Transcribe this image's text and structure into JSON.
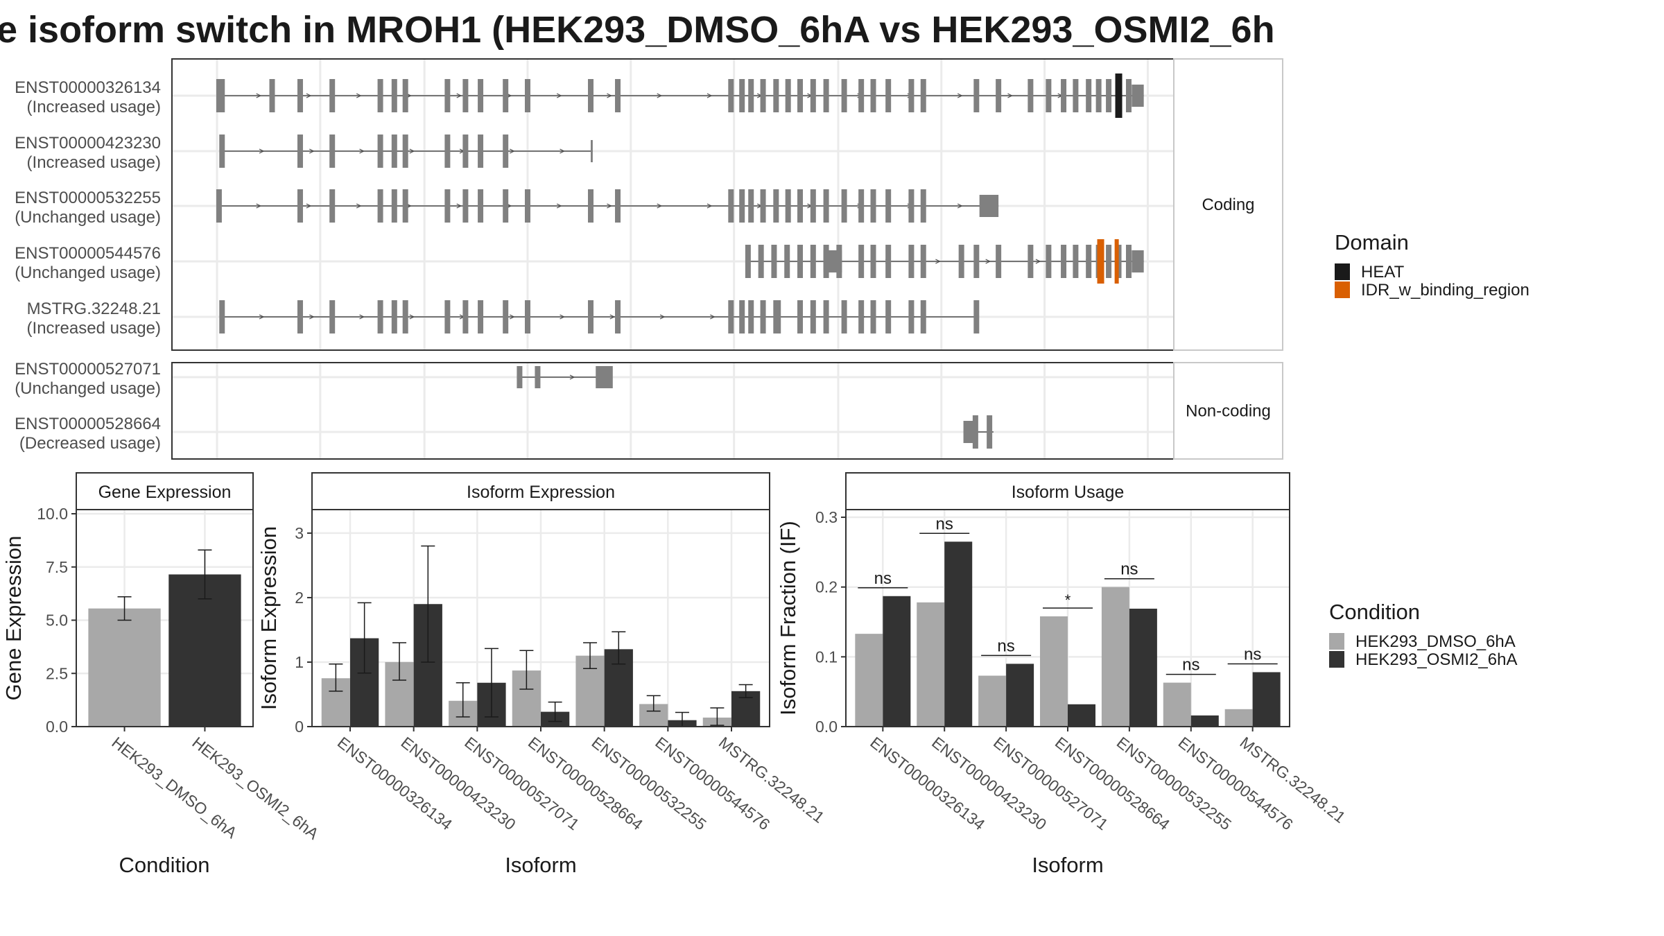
{
  "title": "e isoform switch in MROH1 (HEK293_DMSO_6hA vs HEK293_OSMI2_6h",
  "colors": {
    "dmso": "#a8a8a8",
    "osmi2": "#333333",
    "exon": "#808080",
    "heat": "#1a1a1a",
    "idr": "#d95f02",
    "grid": "#ebebeb",
    "strip": "#ffffff"
  },
  "structure": {
    "coding_label": "Coding",
    "noncoding_label": "Non-coding",
    "coding": [
      {
        "id": "ENST00000326134",
        "usage": "(Increased usage)"
      },
      {
        "id": "ENST00000423230",
        "usage": "(Increased usage)"
      },
      {
        "id": "ENST00000532255",
        "usage": "(Unchanged usage)"
      },
      {
        "id": "ENST00000544576",
        "usage": "(Unchanged usage)"
      },
      {
        "id": "MSTRG.32248.21",
        "usage": "(Increased usage)"
      }
    ],
    "noncoding": [
      {
        "id": "ENST00000527071",
        "usage": "(Unchanged usage)"
      },
      {
        "id": "ENST00000528664",
        "usage": "(Decreased usage)"
      }
    ]
  },
  "legend_domain": {
    "title": "Domain",
    "items": [
      {
        "label": "HEAT",
        "color": "#1a1a1a"
      },
      {
        "label": "IDR_w_binding_region",
        "color": "#d95f02"
      }
    ]
  },
  "legend_condition": {
    "title": "Condition",
    "items": [
      {
        "label": "HEK293_DMSO_6hA",
        "color": "#a8a8a8"
      },
      {
        "label": "HEK293_OSMI2_6hA",
        "color": "#333333"
      }
    ]
  },
  "chart_data": [
    {
      "type": "bar",
      "title": "Gene Expression",
      "xlabel": "Condition",
      "ylabel": "Gene Expression",
      "ylim": [
        0,
        10
      ],
      "yticks": [
        "0.0",
        "2.5",
        "5.0",
        "7.5",
        "10.0"
      ],
      "categories": [
        "HEK293_DMSO_6hA",
        "HEK293_OSMI2_6hA"
      ],
      "values": [
        5.55,
        7.15
      ],
      "error_low": [
        5.0,
        6.0
      ],
      "error_high": [
        6.1,
        8.3
      ]
    },
    {
      "type": "bar",
      "title": "Isoform Expression",
      "xlabel": "Isoform",
      "ylabel": "Isoform Expression",
      "ylim": [
        0,
        3.3
      ],
      "yticks": [
        "0",
        "1",
        "2",
        "3"
      ],
      "categories": [
        "ENST00000326134",
        "ENST00000423230",
        "ENST00000527071",
        "ENST00000528664",
        "ENST00000532255",
        "ENST00000544576",
        "MSTRG.32248.21"
      ],
      "series": [
        {
          "name": "HEK293_DMSO_6hA",
          "values": [
            0.75,
            1.0,
            0.4,
            0.87,
            1.1,
            0.35,
            0.14
          ],
          "error_low": [
            0.55,
            0.72,
            0.15,
            0.58,
            0.9,
            0.24,
            0.02
          ],
          "error_high": [
            0.97,
            1.3,
            0.68,
            1.18,
            1.3,
            0.48,
            0.29
          ]
        },
        {
          "name": "HEK293_OSMI2_6hA",
          "values": [
            1.37,
            1.9,
            0.68,
            0.23,
            1.2,
            0.1,
            0.55
          ],
          "error_low": [
            0.83,
            1.0,
            0.15,
            0.08,
            0.97,
            0.0,
            0.45
          ],
          "error_high": [
            1.92,
            2.8,
            1.21,
            0.38,
            1.47,
            0.22,
            0.65
          ]
        }
      ]
    },
    {
      "type": "bar",
      "title": "Isoform Usage",
      "xlabel": "Isoform",
      "ylabel": "Isoform Fraction (IF)",
      "ylim": [
        0,
        0.305
      ],
      "yticks": [
        "0.0",
        "0.1",
        "0.2",
        "0.3"
      ],
      "categories": [
        "ENST00000326134",
        "ENST00000423230",
        "ENST00000527071",
        "ENST00000528664",
        "ENST00000532255",
        "ENST00000544576",
        "MSTRG.32248.21"
      ],
      "series": [
        {
          "name": "HEK293_DMSO_6hA",
          "values": [
            0.133,
            0.178,
            0.073,
            0.158,
            0.2,
            0.063,
            0.025
          ]
        },
        {
          "name": "HEK293_OSMI2_6hA",
          "values": [
            0.187,
            0.265,
            0.09,
            0.032,
            0.169,
            0.016,
            0.078
          ]
        }
      ],
      "significance": [
        "ns",
        "ns",
        "ns",
        "*",
        "ns",
        "ns",
        "ns"
      ]
    }
  ]
}
